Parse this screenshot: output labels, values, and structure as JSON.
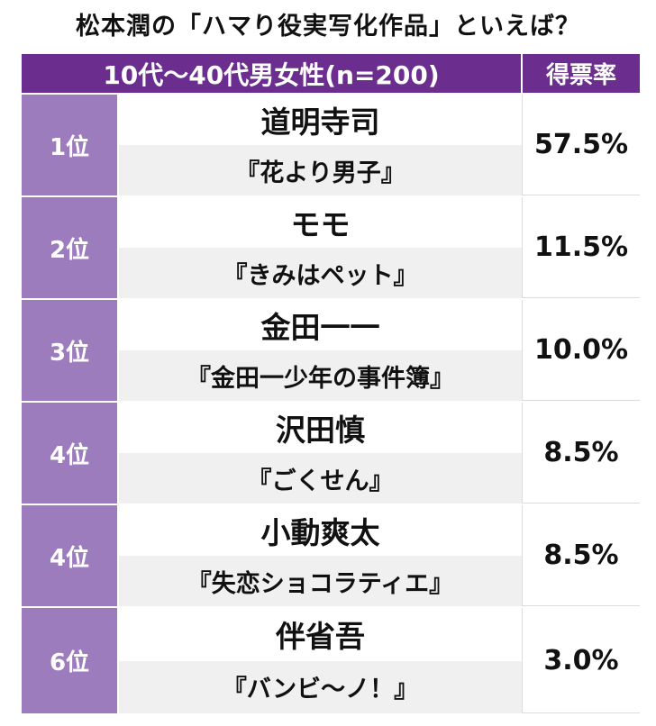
{
  "title": "松本潤の「ハマり役実写化作品」といえば？",
  "header": {
    "demographic": "10代〜40代男女性(n=200)",
    "rate_label": "得票率"
  },
  "rows": [
    {
      "rank": "1位",
      "role": "道明寺司",
      "work": "『花より男子』",
      "rate": "57.5%"
    },
    {
      "rank": "2位",
      "role": "モモ",
      "work": "『きみはペット』",
      "rate": "11.5%"
    },
    {
      "rank": "3位",
      "role": "金田一一",
      "work": "『金田一少年の事件簿』",
      "rate": "10.0%"
    },
    {
      "rank": "4位",
      "role": "沢田慎",
      "work": "『ごくせん』",
      "rate": "8.5%"
    },
    {
      "rank": "4位",
      "role": "小動爽太",
      "work": "『失恋ショコラティエ』",
      "rate": "8.5%"
    },
    {
      "rank": "6位",
      "role": "伴省吾",
      "work": "『バンビ〜ノ！』",
      "rate": "3.0%"
    }
  ]
}
